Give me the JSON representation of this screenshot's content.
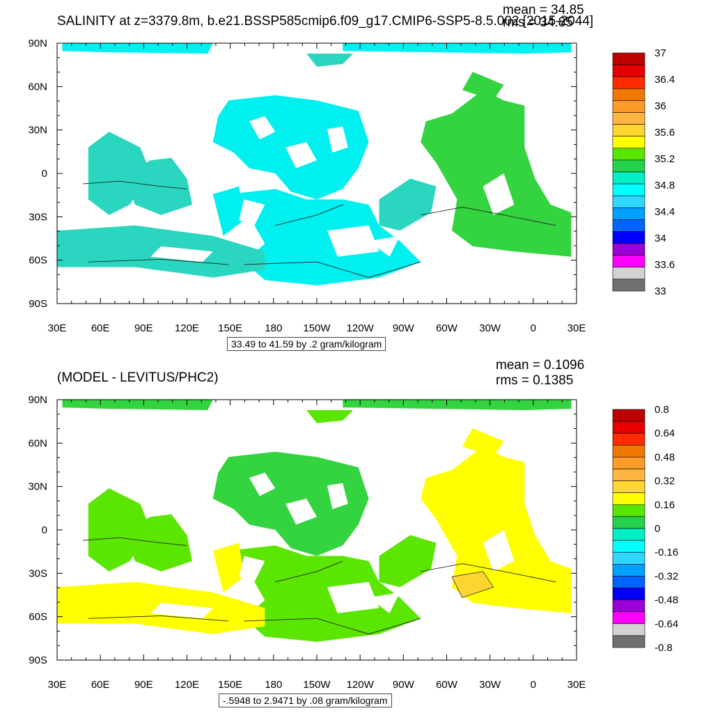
{
  "panels": [
    {
      "title": "SALINITY at z=3379.8m, b.e21.BSSP585cmip6.f09_g17.CMIP6-SSP5-8.5.002 [2015-2044]",
      "mean": "mean = 34.85",
      "rms": "rms = 34.85",
      "range_text": "33.49 to 41.59 by .2 gram/kilogram",
      "colorbar_labels": [
        "37",
        "36.4",
        "36",
        "35.6",
        "35.2",
        "34.8",
        "34.4",
        "34",
        "33.6",
        "33"
      ],
      "colorbar_colors": [
        "#c00000",
        "#e80000",
        "#ff2a00",
        "#f07800",
        "#ff9b28",
        "#ffb53f",
        "#ffd531",
        "#ffff00",
        "#5ae600",
        "#26d14c",
        "#00efc5",
        "#00ffff",
        "#2fd7ff",
        "#00a0ff",
        "#0064ff",
        "#0000ff",
        "#9b00d7",
        "#ff00ff",
        "#d2d2d2",
        "#707070"
      ],
      "ocean_color": "#00efef",
      "ocean_color2": "#2ad6c0",
      "atlantic_color": "#33d43f"
    },
    {
      "title": "(MODEL - LEVITUS/PHC2)",
      "mean": "mean = 0.1096",
      "rms": "rms = 0.1385",
      "range_text": "-.5948 to 2.9471 by .08 gram/kilogram",
      "colorbar_labels": [
        "0.8",
        "0.64",
        "0.48",
        "0.32",
        "0.16",
        "0",
        "-0.16",
        "-0.32",
        "-0.48",
        "-0.64",
        "-0.8"
      ],
      "colorbar_colors": [
        "#c00000",
        "#e80000",
        "#ff2a00",
        "#f07800",
        "#ff9b28",
        "#ffb53f",
        "#ffd531",
        "#ffff00",
        "#5ae600",
        "#26d14c",
        "#00efc5",
        "#00ffff",
        "#2fd7ff",
        "#00a0ff",
        "#0064ff",
        "#0000ff",
        "#9b00d7",
        "#ff00ff",
        "#d2d2d2",
        "#707070"
      ],
      "ocean_color": "#33d43f",
      "ocean_color2": "#5ae600",
      "atlantic_color": "#ffff00"
    }
  ],
  "axes": {
    "y_ticks": [
      "90N",
      "60N",
      "30N",
      "0",
      "30S",
      "60S",
      "90S"
    ],
    "x_ticks": [
      "30E",
      "60E",
      "90E",
      "120E",
      "150E",
      "180",
      "150W",
      "120W",
      "90W",
      "60W",
      "30W",
      "0",
      "30E"
    ]
  },
  "chart_data": [
    {
      "type": "heatmap",
      "title": "SALINITY at z=3379.8m, b.e21.BSSP585cmip6.f09_g17.CMIP6-SSP5-8.5.002 [2015-2044]",
      "variable": "salinity",
      "units": "gram/kilogram",
      "mean": 34.85,
      "rms": 34.85,
      "min": 33.49,
      "max": 41.59,
      "interval": 0.2,
      "colorbar_levels": [
        33,
        33.6,
        34,
        34.4,
        34.8,
        35.2,
        35.6,
        36,
        36.4,
        37
      ],
      "x_ticks": [
        "30E",
        "60E",
        "90E",
        "120E",
        "150E",
        "180",
        "150W",
        "120W",
        "90W",
        "60W",
        "30W",
        "0",
        "30E"
      ],
      "y_ticks": [
        "90N",
        "60N",
        "30N",
        "0",
        "30S",
        "60S",
        "90S"
      ]
    },
    {
      "type": "heatmap",
      "title": "(MODEL - LEVITUS/PHC2)",
      "variable": "salinity difference",
      "units": "gram/kilogram",
      "mean": 0.1096,
      "rms": 0.1385,
      "min": -0.5948,
      "max": 2.9471,
      "interval": 0.08,
      "colorbar_levels": [
        -0.8,
        -0.64,
        -0.48,
        -0.32,
        -0.16,
        0,
        0.16,
        0.32,
        0.48,
        0.64,
        0.8
      ],
      "x_ticks": [
        "30E",
        "60E",
        "90E",
        "120E",
        "150E",
        "180",
        "150W",
        "120W",
        "90W",
        "60W",
        "30W",
        "0",
        "30E"
      ],
      "y_ticks": [
        "90N",
        "60N",
        "30N",
        "0",
        "30S",
        "60S",
        "90S"
      ]
    }
  ]
}
